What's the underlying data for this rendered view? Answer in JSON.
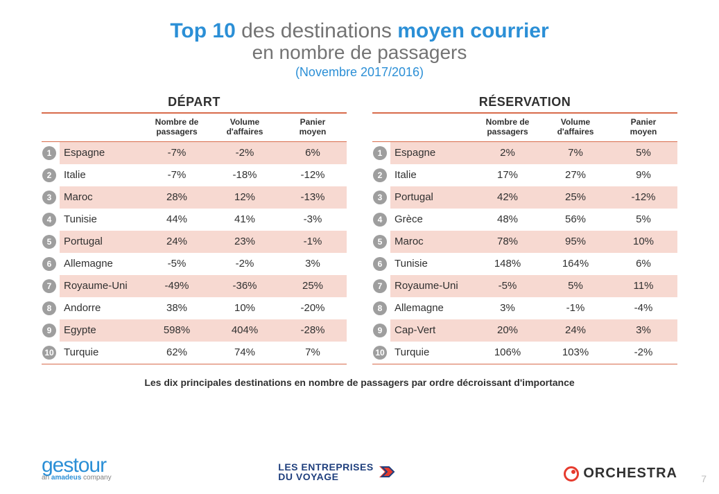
{
  "title": {
    "top10": "Top 10",
    "mid": " des destinations ",
    "mc": "moyen courrier",
    "line2": "en nombre de passagers",
    "period": "(Novembre 2017/2016)"
  },
  "colors": {
    "accent_blue": "#2b8fd6",
    "rule_orange": "#d86a4a",
    "row_band": "#f7d9d1",
    "rank_badge": "#9e9e9e",
    "text_gray": "#737373",
    "orchestra_red": "#e63b2e",
    "edv_navy": "#1f3f7d"
  },
  "table_headers": {
    "passengers": "Nombre de\npassagers",
    "volume": "Volume\nd'affaires",
    "basket": "Panier\nmoyen"
  },
  "tables": {
    "depart": {
      "title": "DÉPART",
      "rows": [
        {
          "rank": 1,
          "dest": "Espagne",
          "pax": "-7%",
          "vol": "-2%",
          "bask": "6%"
        },
        {
          "rank": 2,
          "dest": "Italie",
          "pax": "-7%",
          "vol": "-18%",
          "bask": "-12%"
        },
        {
          "rank": 3,
          "dest": "Maroc",
          "pax": "28%",
          "vol": "12%",
          "bask": "-13%"
        },
        {
          "rank": 4,
          "dest": "Tunisie",
          "pax": "44%",
          "vol": "41%",
          "bask": "-3%"
        },
        {
          "rank": 5,
          "dest": "Portugal",
          "pax": "24%",
          "vol": "23%",
          "bask": "-1%"
        },
        {
          "rank": 6,
          "dest": "Allemagne",
          "pax": "-5%",
          "vol": "-2%",
          "bask": "3%"
        },
        {
          "rank": 7,
          "dest": "Royaume-Uni",
          "pax": "-49%",
          "vol": "-36%",
          "bask": "25%"
        },
        {
          "rank": 8,
          "dest": "Andorre",
          "pax": "38%",
          "vol": "10%",
          "bask": "-20%"
        },
        {
          "rank": 9,
          "dest": "Egypte",
          "pax": "598%",
          "vol": "404%",
          "bask": "-28%"
        },
        {
          "rank": 10,
          "dest": "Turquie",
          "pax": "62%",
          "vol": "74%",
          "bask": "7%"
        }
      ]
    },
    "reservation": {
      "title": "RÉSERVATION",
      "rows": [
        {
          "rank": 1,
          "dest": "Espagne",
          "pax": "2%",
          "vol": "7%",
          "bask": "5%"
        },
        {
          "rank": 2,
          "dest": "Italie",
          "pax": "17%",
          "vol": "27%",
          "bask": "9%"
        },
        {
          "rank": 3,
          "dest": "Portugal",
          "pax": "42%",
          "vol": "25%",
          "bask": "-12%"
        },
        {
          "rank": 4,
          "dest": "Grèce",
          "pax": "48%",
          "vol": "56%",
          "bask": "5%"
        },
        {
          "rank": 5,
          "dest": "Maroc",
          "pax": "78%",
          "vol": "95%",
          "bask": "10%"
        },
        {
          "rank": 6,
          "dest": "Tunisie",
          "pax": "148%",
          "vol": "164%",
          "bask": "6%"
        },
        {
          "rank": 7,
          "dest": "Royaume-Uni",
          "pax": "-5%",
          "vol": "5%",
          "bask": "11%"
        },
        {
          "rank": 8,
          "dest": "Allemagne",
          "pax": "3%",
          "vol": "-1%",
          "bask": "-4%"
        },
        {
          "rank": 9,
          "dest": "Cap-Vert",
          "pax": "20%",
          "vol": "24%",
          "bask": "3%"
        },
        {
          "rank": 10,
          "dest": "Turquie",
          "pax": "106%",
          "vol": "103%",
          "bask": "-2%"
        }
      ]
    }
  },
  "footnote": "Les dix principales destinations en nombre de passagers par ordre décroissant d'importance",
  "logos": {
    "gestour": {
      "name": "gestour",
      "sub_prefix": "an ",
      "sub_brand": "amadeus",
      "sub_suffix": " company"
    },
    "edv": {
      "line1": "LES ENTREPRISES",
      "line2": "DU VOYAGE"
    },
    "orchestra": {
      "text": "ORCHESTRA"
    }
  },
  "page_number": "7"
}
